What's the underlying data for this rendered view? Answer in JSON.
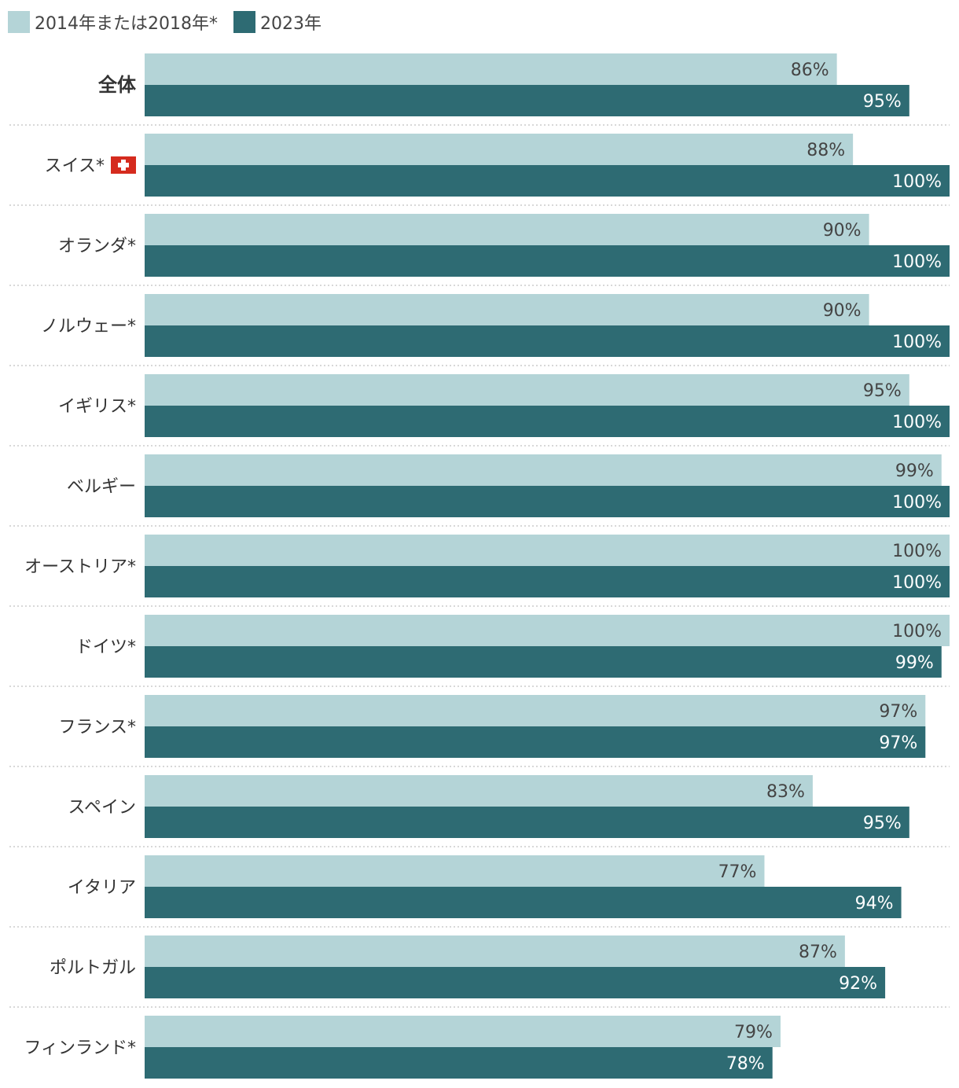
{
  "colors": {
    "series_2014_2018": "#b4d4d7",
    "series_2023": "#2e6b73",
    "label_on_light": "#444444",
    "label_on_dark": "#ffffff",
    "separator": "#cccccc"
  },
  "chart_data": {
    "type": "bar",
    "orientation": "horizontal",
    "legend_position": "top-left",
    "xlim": [
      0,
      100
    ],
    "unit": "%",
    "categories": [
      "全体",
      "スイス*",
      "オランダ*",
      "ノルウェー*",
      "イギリス*",
      "ベルギー",
      "オーストリア*",
      "ドイツ*",
      "フランス*",
      "スペイン",
      "イタリア",
      "ポルトガル",
      "フィンランド*"
    ],
    "flag_icons": {
      "スイス*": "swiss-flag-icon"
    },
    "series": [
      {
        "name": "2014年または2018年*",
        "values": [
          86,
          88,
          90,
          90,
          95,
          99,
          100,
          100,
          97,
          83,
          77,
          87,
          79
        ]
      },
      {
        "name": "2023年",
        "values": [
          95,
          100,
          100,
          100,
          100,
          100,
          100,
          99,
          97,
          95,
          94,
          92,
          78
        ]
      }
    ]
  }
}
